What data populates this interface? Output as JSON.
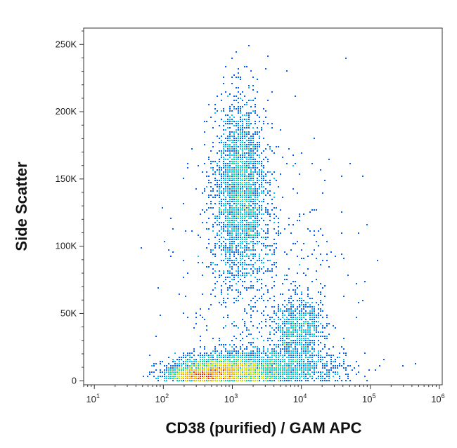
{
  "chart_data": {
    "type": "scatter",
    "subtype": "flow-cytometry density plot",
    "title": "",
    "xlabel": "CD38 (purified) / GAM APC",
    "ylabel": "Side Scatter",
    "xscale": "log",
    "xlim": [
      7,
      1100000
    ],
    "ylim": [
      -3000,
      262144
    ],
    "xticks": [
      {
        "base": "10",
        "exp": "1",
        "value": 10
      },
      {
        "base": "10",
        "exp": "2",
        "value": 100
      },
      {
        "base": "10",
        "exp": "3",
        "value": 1000
      },
      {
        "base": "10",
        "exp": "4",
        "value": 10000
      },
      {
        "base": "10",
        "exp": "5",
        "value": 100000
      },
      {
        "base": "10",
        "exp": "6",
        "value": 1000000
      }
    ],
    "yticks": [
      {
        "label": "0",
        "value": 0
      },
      {
        "label": "50K",
        "value": 50000
      },
      {
        "label": "100K",
        "value": 100000
      },
      {
        "label": "150K",
        "value": 150000
      },
      {
        "label": "200K",
        "value": 200000
      },
      {
        "label": "250K",
        "value": 250000
      }
    ],
    "colormap": [
      "#0000cc",
      "#0060ff",
      "#00c8ff",
      "#00e080",
      "#c8e600",
      "#ffa000",
      "#ff2000"
    ],
    "populations": [
      {
        "cx": 1300,
        "sdLogX": 0.19,
        "cy": 140000,
        "sdY": 33000,
        "count": 2600
      },
      {
        "cx": 9000,
        "sdLogX": 0.17,
        "cy": 40000,
        "sdY": 11000,
        "count": 700
      },
      {
        "cx": 700,
        "sdLogX": 0.35,
        "cy": 7000,
        "sdY": 5000,
        "count": 2400
      },
      {
        "cx": 3000,
        "sdLogX": 0.55,
        "cy": 10000,
        "sdY": 7000,
        "count": 1600
      },
      {
        "cx": 300,
        "sdLogX": 0.22,
        "cy": 3500,
        "sdY": 2500,
        "count": 900
      },
      {
        "cx": 2500,
        "sdLogX": 0.6,
        "cy": 60000,
        "sdY": 60000,
        "count": 700
      }
    ]
  }
}
